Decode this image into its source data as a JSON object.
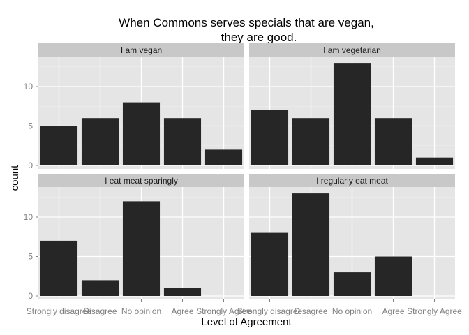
{
  "chart_data": {
    "type": "bar",
    "title_lines": [
      "When Commons serves specials that are vegan,",
      "they are good."
    ],
    "xlabel": "Level of Agreement",
    "ylabel": "count",
    "ylim": [
      0,
      14
    ],
    "yticks": [
      0,
      5,
      10
    ],
    "grid": true,
    "categories": [
      "Strongly disagree",
      "Disagree",
      "No opinion",
      "Agree",
      "Strongly Agree"
    ],
    "facets": [
      {
        "name": "I am vegan",
        "values": [
          5,
          6,
          8,
          6,
          2
        ]
      },
      {
        "name": "I am vegetarian",
        "values": [
          7,
          6,
          13,
          6,
          1
        ]
      },
      {
        "name": "I eat meat sparingly",
        "values": [
          7,
          2,
          12,
          1,
          0
        ]
      },
      {
        "name": "I regularly eat meat",
        "values": [
          8,
          13,
          3,
          5,
          0
        ]
      }
    ],
    "colors": {
      "bar": "#262626",
      "panel_bg": "#e5e5e5",
      "strip_bg": "#c8c8c8",
      "grid_major": "#ffffff",
      "grid_minor": "#f0f0f0"
    }
  }
}
